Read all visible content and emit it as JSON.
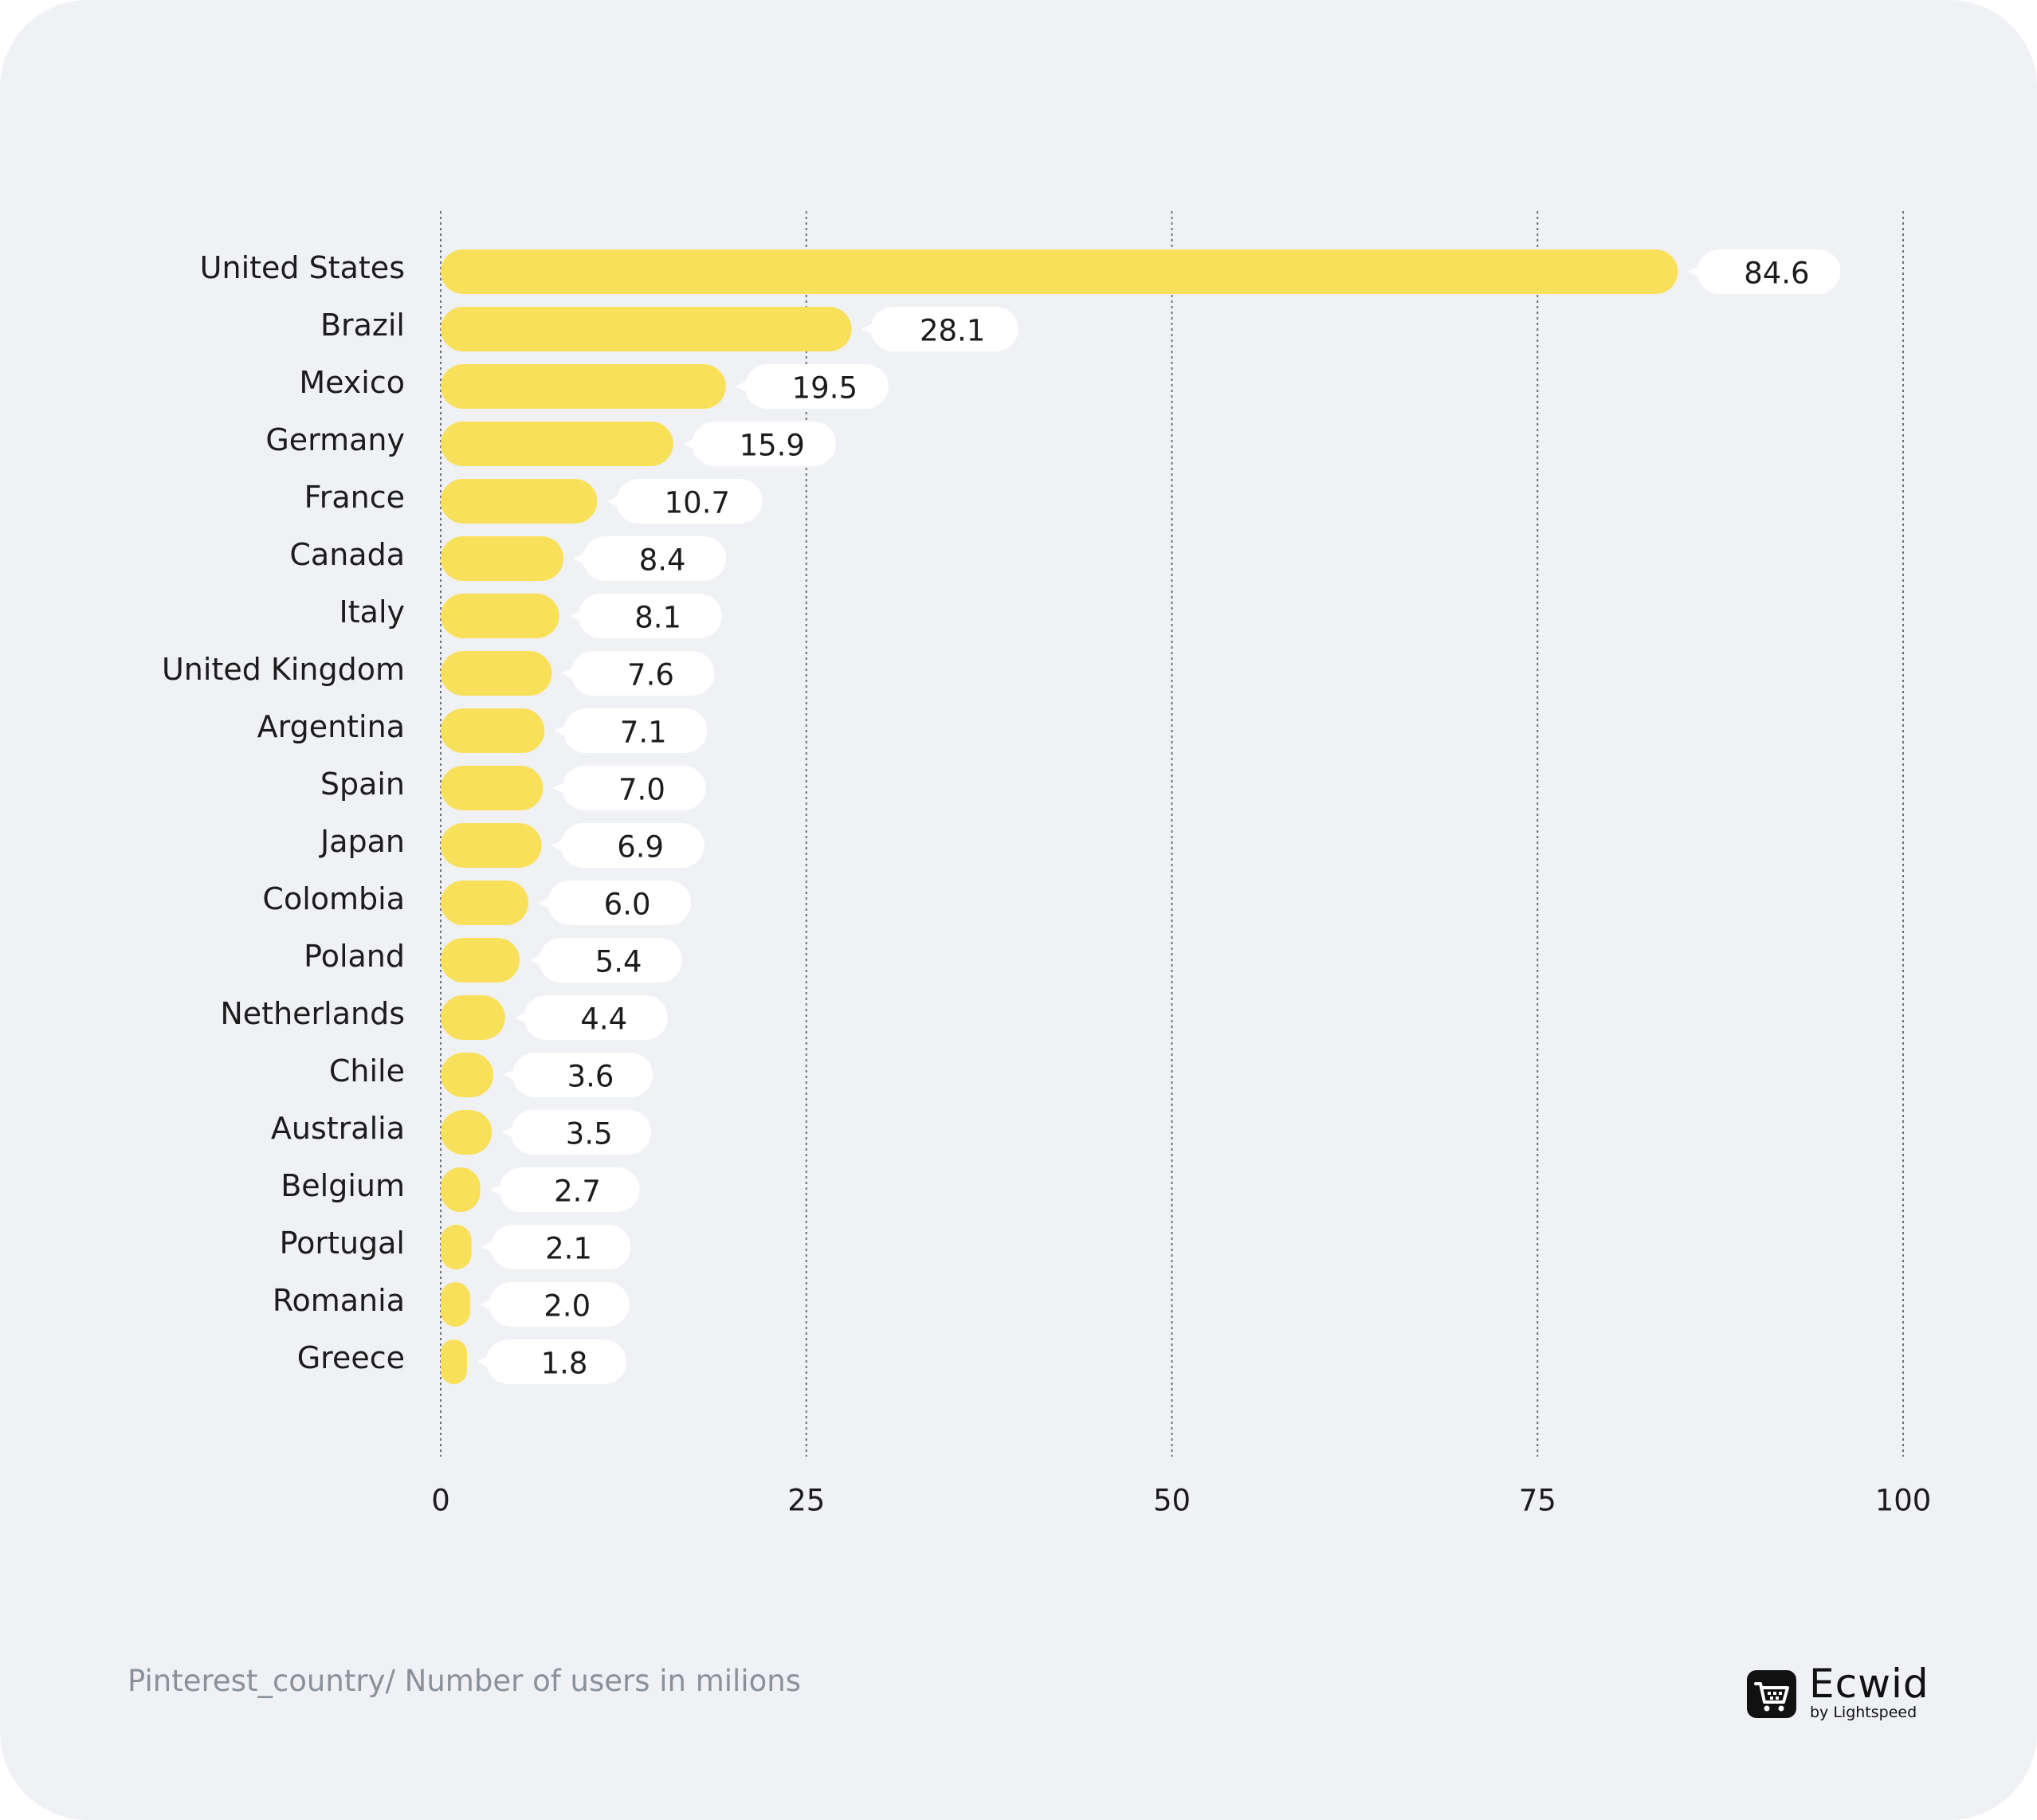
{
  "chart_data": {
    "type": "bar",
    "orientation": "horizontal",
    "title": "",
    "xlabel": "",
    "ylabel": "",
    "xlim": [
      0,
      100
    ],
    "ticks": [
      0,
      25,
      50,
      75,
      100
    ],
    "tick_labels": [
      "0",
      "25",
      "50",
      "75",
      "100"
    ],
    "grid": true,
    "categories": [
      "United States",
      "Brazil",
      "Mexico",
      "Germany",
      "France",
      "Canada",
      "Italy",
      "United Kingdom",
      "Argentina",
      "Spain",
      "Japan",
      "Colombia",
      "Poland",
      "Netherlands",
      "Chile",
      "Australia",
      "Belgium",
      "Portugal",
      "Romania",
      "Greece"
    ],
    "values": [
      84.6,
      28.1,
      19.5,
      15.9,
      10.7,
      8.4,
      8.1,
      7.6,
      7.1,
      7.0,
      6.9,
      6.0,
      5.4,
      4.4,
      3.6,
      3.5,
      2.7,
      2.1,
      2.0,
      1.8
    ],
    "value_labels": [
      "84.6",
      "28.1",
      "19.5",
      "15.9",
      "10.7",
      "8.4",
      "8.1",
      "7.6",
      "7.1",
      "7.0",
      "6.9",
      "6.0",
      "5.4",
      "4.4",
      "3.6",
      "3.5",
      "2.7",
      "2.1",
      "2.0",
      "1.8"
    ],
    "bar_color": "#f9e05b",
    "label_bubble_color": "#ffffff"
  },
  "caption": "Pinterest_country/ Number of users in milions",
  "brand": {
    "name": "Ecwid",
    "tagline": "by Lightspeed",
    "logo_icon": "shopping-cart-icon"
  },
  "colors": {
    "background": "#eff1f4",
    "grid": "#6b6f75",
    "text": "#1c1c1c",
    "caption": "#8a9199"
  }
}
